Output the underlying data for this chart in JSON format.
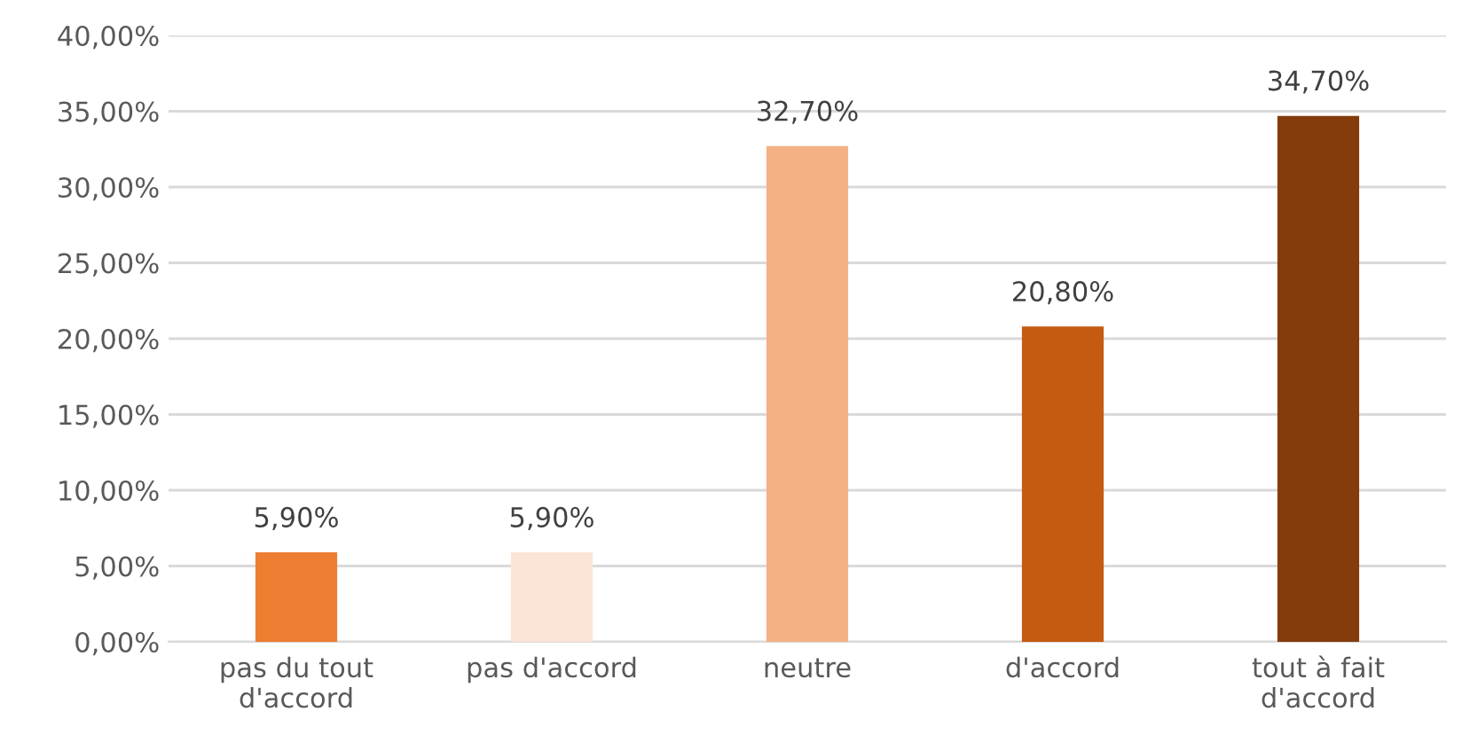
{
  "chart_data": {
    "type": "bar",
    "categories": [
      "pas du tout\nd'accord",
      "pas d'accord",
      "neutre",
      "d'accord",
      "tout à fait\nd'accord"
    ],
    "values": [
      5.9,
      5.9,
      32.7,
      20.8,
      34.7
    ],
    "colors": [
      "#ed7d31",
      "#fbe5d6",
      "#f4b183",
      "#c55a11",
      "#843c0c"
    ],
    "value_labels": [
      "5,90%",
      "5,90%",
      "32,70%",
      "20,80%",
      "34,70%"
    ],
    "ylim": [
      0,
      40
    ],
    "yticks": [
      {
        "value": 0,
        "label": "0,00%"
      },
      {
        "value": 5,
        "label": "5,00%"
      },
      {
        "value": 10,
        "label": "10,00%"
      },
      {
        "value": 15,
        "label": "15,00%"
      },
      {
        "value": 20,
        "label": "20,00%"
      },
      {
        "value": 25,
        "label": "25,00%"
      },
      {
        "value": 30,
        "label": "30,00%"
      },
      {
        "value": 35,
        "label": "35,00%"
      },
      {
        "value": 40,
        "label": "40,00%"
      }
    ],
    "grid": "y"
  }
}
